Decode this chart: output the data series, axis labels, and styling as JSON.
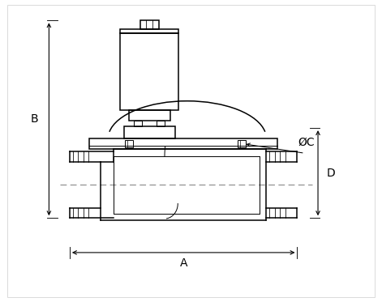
{
  "bg_color": "#ffffff",
  "line_color": "#000000",
  "dashed_color": "#888888",
  "fig_width": 4.71,
  "fig_height": 3.73,
  "label_A": "A",
  "label_B": "B",
  "label_C": "ØC",
  "label_D": "D"
}
